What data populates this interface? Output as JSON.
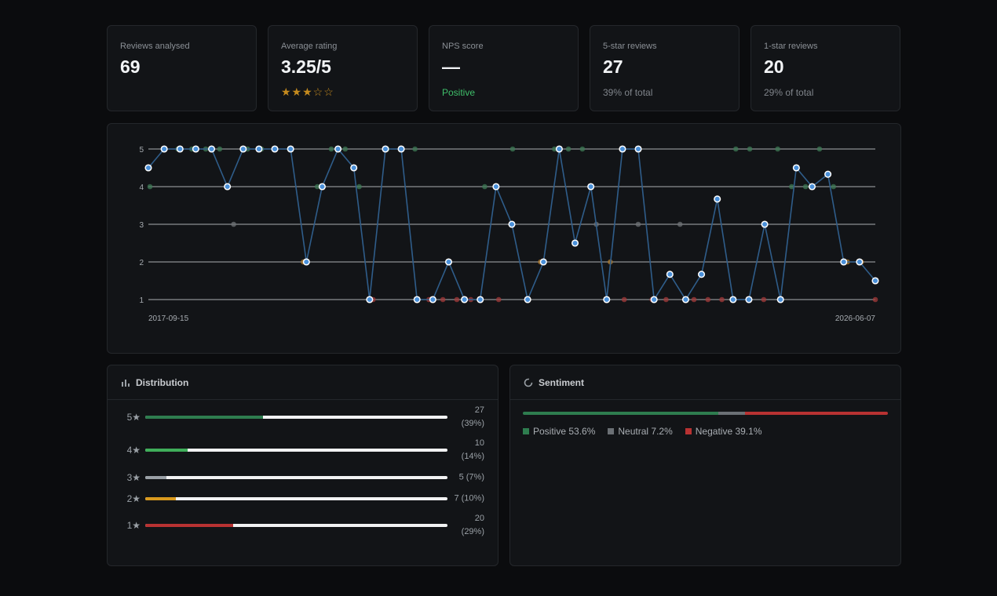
{
  "stats": {
    "reviews": {
      "label": "Reviews analysed",
      "value": "69"
    },
    "average": {
      "label": "Average rating",
      "value": "3.25/5",
      "stars": "★★★☆☆"
    },
    "nps": {
      "label": "NPS score",
      "value": "—",
      "sub": "Positive"
    },
    "five": {
      "label": "5-star reviews",
      "value": "27",
      "sub": "39% of total"
    },
    "one": {
      "label": "1-star reviews",
      "value": "20",
      "sub": "29% of total"
    }
  },
  "chart_data": {
    "type": "scatter",
    "x_start_label": "2017-09-15",
    "x_end_label": "2026-06-07",
    "ylim": [
      1,
      5
    ],
    "yticks": [
      "5",
      "4",
      "3",
      "2",
      "1"
    ],
    "grid": true,
    "series": [
      {
        "kind": "line",
        "color": "#2f5d8a",
        "values": [
          4.5,
          5,
          5,
          5,
          5,
          4,
          5,
          5,
          5,
          5,
          2,
          4,
          5,
          4.5,
          1,
          5,
          5,
          1,
          1,
          2,
          1,
          1,
          4,
          3,
          1,
          2,
          5,
          2.5,
          4,
          1,
          5,
          5,
          1,
          1.67,
          1,
          1.67,
          3.67,
          1,
          1,
          3,
          1,
          4.5,
          4,
          4.33,
          2,
          2,
          1.5
        ]
      },
      {
        "kind": "points",
        "values": [
          4,
          5,
          5,
          5,
          5,
          5,
          3,
          5,
          5,
          5,
          5,
          2,
          4,
          5,
          5,
          4,
          1,
          5,
          5,
          5,
          1,
          1,
          1,
          1,
          4,
          1,
          5,
          1,
          2,
          5,
          5,
          5,
          3,
          2,
          1,
          3,
          1,
          1,
          3,
          1,
          1,
          1,
          5,
          5,
          1,
          5,
          4,
          4,
          5,
          4,
          2,
          2,
          1
        ]
      }
    ]
  },
  "distribution": {
    "title": "Distribution",
    "rows": [
      {
        "label": "5★",
        "count": "27",
        "pct_text": "(39%)",
        "fraction": 0.39,
        "color": "#2e7d4f"
      },
      {
        "label": "4★",
        "count": "10",
        "pct_text": "(14%)",
        "fraction": 0.14,
        "color": "#3fae5a"
      },
      {
        "label": "3★",
        "count": "5 (7%)",
        "pct_text": "",
        "fraction": 0.07,
        "color": "#9aa0a6"
      },
      {
        "label": "2★",
        "count": "7 (10%)",
        "pct_text": "",
        "fraction": 0.1,
        "color": "#d99a1e"
      },
      {
        "label": "1★",
        "count": "20",
        "pct_text": "(29%)",
        "fraction": 0.29,
        "color": "#b83232"
      }
    ]
  },
  "sentiment": {
    "title": "Sentiment",
    "items": [
      {
        "label": "Positive 53.6%",
        "fraction": 0.536,
        "color": "#2e7d4f"
      },
      {
        "label": "Neutral 7.2%",
        "fraction": 0.072,
        "color": "#6b7075"
      },
      {
        "label": "Negative 39.1%",
        "fraction": 0.391,
        "color": "#b83232"
      }
    ]
  }
}
